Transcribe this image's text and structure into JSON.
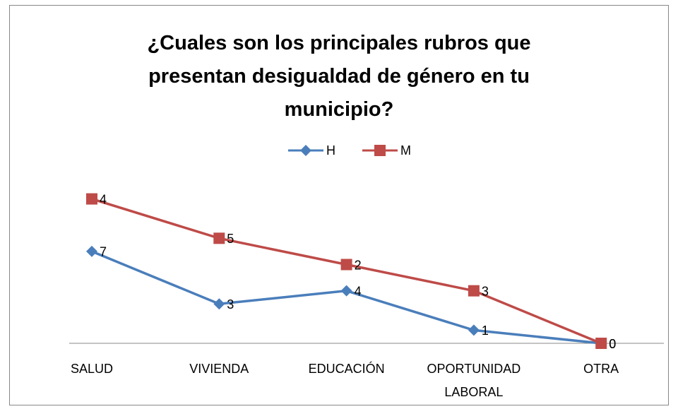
{
  "chart_data": {
    "type": "line",
    "stacked": true,
    "title": "¿Cuales son los principales rubros que presentan desigualdad de género en tu municipio?",
    "categories": [
      "SALUD",
      "VIVIENDA",
      "EDUCACIÓN",
      "OPORTUNIDAD LABORAL",
      "OTRA"
    ],
    "series": [
      {
        "name": "H",
        "color": "#4a7ebb",
        "marker": "diamond",
        "values": [
          7,
          3,
          4,
          1,
          0
        ]
      },
      {
        "name": "M",
        "color": "#be4b48",
        "marker": "square",
        "values": [
          4,
          5,
          2,
          3,
          0
        ]
      }
    ],
    "ylim": [
      0,
      12
    ],
    "legend": "top"
  }
}
